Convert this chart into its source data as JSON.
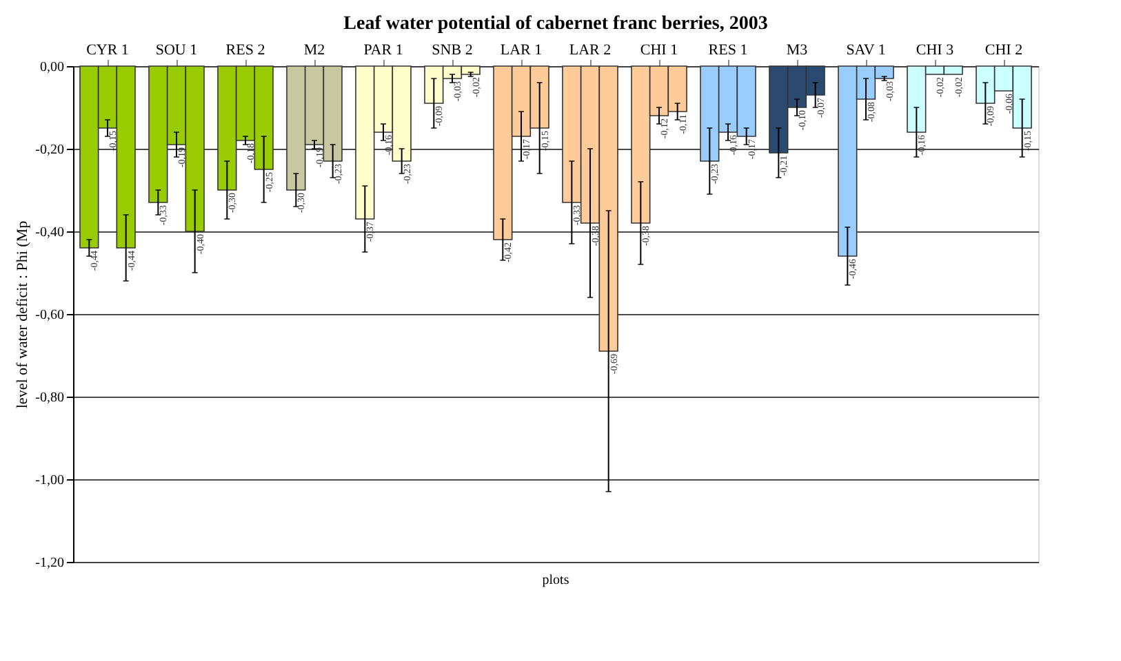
{
  "chart_data": {
    "type": "bar",
    "title": "Leaf water potential of cabernet franc berries, 2003",
    "xlabel": "plots",
    "ylabel": "level of water deficit : Phi (Mp",
    "categories": [
      "CYR 1",
      "SOU 1",
      "RES 2",
      "M2",
      "PAR 1",
      "SNB 2",
      "LAR 1",
      "LAR 2",
      "CHI 1",
      "RES 1",
      "M3",
      "SAV 1",
      "CHI 3",
      "CHI 2"
    ],
    "series": [
      {
        "colors": [
          "#99cc00",
          "#99cc00",
          "#99cc00",
          "#c8c8a0",
          "#ffffcc",
          "#ffffcc",
          "#ffcc99",
          "#ffcc99",
          "#ffcc99",
          "#99ccff",
          "#2a4a70",
          "#99ccff",
          "#ccffff",
          "#ccffff"
        ],
        "values": [
          -0.44,
          -0.33,
          -0.3,
          -0.3,
          -0.37,
          -0.09,
          -0.42,
          -0.33,
          -0.38,
          -0.23,
          -0.21,
          -0.46,
          -0.16,
          -0.09
        ],
        "errors": [
          0.02,
          0.03,
          0.07,
          0.04,
          0.08,
          0.06,
          0.05,
          0.1,
          0.1,
          0.08,
          0.06,
          0.07,
          0.06,
          0.05
        ],
        "value_labels": [
          "-0,44",
          "-0,33",
          "-0,30",
          "-0,30",
          "-0,37",
          "-0,09",
          "-0,42",
          "-0,33",
          "-0,38",
          "-0,23",
          "-0,21",
          "-0,46",
          "-0,16",
          "-0,09"
        ]
      },
      {
        "colors": [
          "#99cc00",
          "#99cc00",
          "#99cc00",
          "#c8c8a0",
          "#ffffcc",
          "#ffffcc",
          "#ffcc99",
          "#ffcc99",
          "#ffcc99",
          "#99ccff",
          "#2a4a70",
          "#99ccff",
          "#ccffff",
          "#ccffff"
        ],
        "values": [
          -0.15,
          -0.19,
          -0.18,
          -0.19,
          -0.16,
          -0.03,
          -0.17,
          -0.38,
          -0.12,
          -0.16,
          -0.1,
          -0.08,
          -0.02,
          -0.06
        ],
        "errors": [
          0.02,
          0.03,
          0.01,
          0.01,
          0.02,
          0.01,
          0.06,
          0.18,
          0.02,
          0.02,
          0.02,
          0.05,
          null,
          null
        ],
        "value_labels": [
          "-0,15",
          "-0,19",
          "-0,18",
          "-0,19",
          "-0,16",
          "-0,03",
          "-0,17",
          "-0,38",
          "-0,12",
          "-0,16",
          "-0,10",
          "-0,08",
          "-0,02",
          "-0,06"
        ]
      },
      {
        "colors": [
          "#99cc00",
          "#99cc00",
          "#99cc00",
          "#c8c8a0",
          "#ffffcc",
          "#ffffcc",
          "#ffcc99",
          "#ffcc99",
          "#ffcc99",
          "#99ccff",
          "#2a4a70",
          "#99ccff",
          "#ccffff",
          "#ccffff"
        ],
        "values": [
          -0.44,
          -0.4,
          -0.25,
          -0.23,
          -0.23,
          -0.02,
          -0.15,
          -0.69,
          -0.11,
          -0.17,
          -0.07,
          -0.03,
          -0.02,
          -0.15
        ],
        "errors": [
          0.08,
          0.1,
          0.08,
          0.04,
          0.03,
          0.005,
          0.11,
          0.34,
          0.02,
          0.02,
          0.03,
          0.005,
          null,
          0.07
        ],
        "value_labels": [
          "-0,44",
          "-0,40",
          "-0,25",
          "-0,23",
          "-0,23",
          "-0,02",
          "-0,15",
          "-0,69",
          "-0,11",
          "-0,17",
          "-0,07",
          "-0,03",
          "-0,02",
          "-0,15"
        ]
      }
    ],
    "ylim": [
      -1.2,
      0
    ],
    "yticks": [
      {
        "value": -1.2,
        "label": "-1,20"
      },
      {
        "value": -1.0,
        "label": "-1,00"
      },
      {
        "value": -0.8,
        "label": "-0,80"
      },
      {
        "value": -0.6,
        "label": "-0,60"
      },
      {
        "value": -0.4,
        "label": "-0,40"
      },
      {
        "value": -0.2,
        "label": "-0,20"
      },
      {
        "value": 0,
        "label": "0,00"
      }
    ],
    "grid": "y",
    "legend": false
  }
}
